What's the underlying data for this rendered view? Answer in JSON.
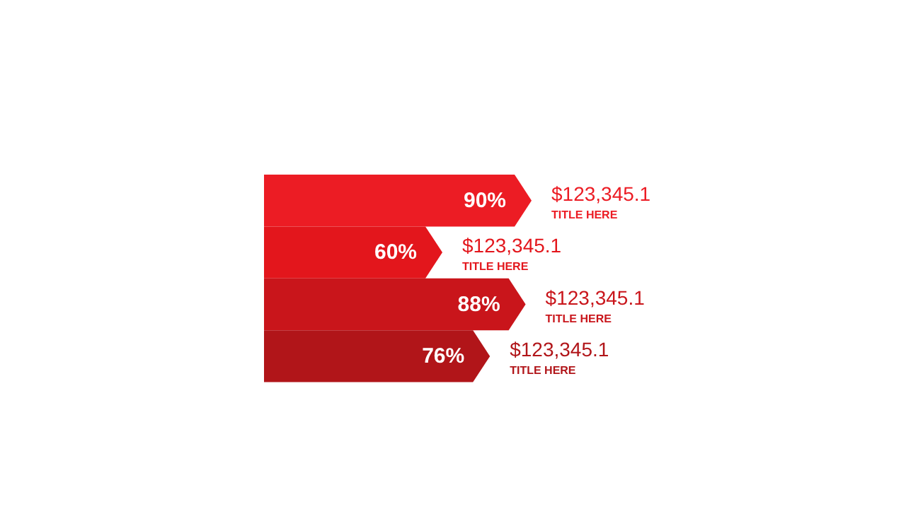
{
  "chart_data": {
    "type": "bar",
    "orientation": "horizontal",
    "categories": [
      null,
      null,
      null,
      null
    ],
    "values": [
      90,
      60,
      88,
      76
    ],
    "value_labels": [
      "90%",
      "60%",
      "88%",
      "76%"
    ],
    "colors": [
      "#ec1c24",
      "#e3161c",
      "#c9151b",
      "#b11519"
    ],
    "annotations": [
      "$123,345.1",
      "TITLE HERE",
      "$123,345.1",
      "TITLE HERE",
      "$123,345.1",
      "TITLE HERE",
      "$123,345.1",
      "TITLE HERE"
    ]
  }
}
